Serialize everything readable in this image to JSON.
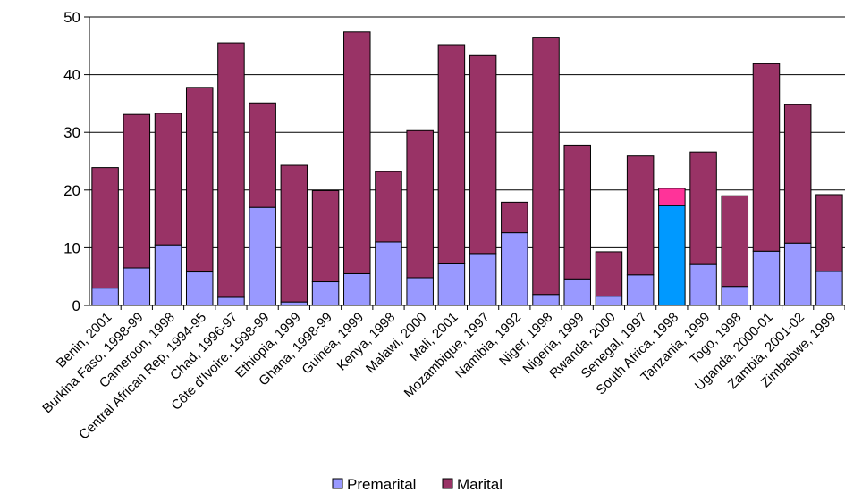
{
  "chart_data": {
    "type": "bar",
    "stacked": true,
    "categories": [
      "Benin, 2001",
      "Burkina Faso, 1998-99",
      "Cameroon, 1998",
      "Central African Rep, 1994-95",
      "Chad, 1996-97",
      "Côte d'Ivoire, 1998-99",
      "Ethiopia, 1999",
      "Ghana, 1998-99",
      "Guinea, 1999",
      "Kenya, 1998",
      "Malawi, 2000",
      "Mali, 2001",
      "Mozambique, 1997",
      "Namibia, 1992",
      "Niger, 1998",
      "Nigeria, 1999",
      "Rwanda, 2000",
      "Senegal, 1997",
      "South Africa, 1998",
      "Tanzania, 1999",
      "Togo, 1998",
      "Uganda, 2000-01",
      "Zambia, 2001-02",
      "Zimbabwe, 1999"
    ],
    "series": [
      {
        "name": "Premarital",
        "color": "#9999ff",
        "values": [
          3,
          6.5,
          10.5,
          5.8,
          1.4,
          17,
          0.6,
          4.1,
          5.5,
          11,
          4.8,
          7.2,
          9,
          12.6,
          1.9,
          4.6,
          1.6,
          5.3,
          17.3,
          7.1,
          3.3,
          9.4,
          10.8,
          5.9
        ]
      },
      {
        "name": "Marital",
        "color": "#993366",
        "values": [
          20.9,
          26.6,
          22.8,
          32,
          44.1,
          18.1,
          23.7,
          15.8,
          41.9,
          12.2,
          25.5,
          38,
          34.3,
          5.3,
          44.6,
          23.2,
          7.7,
          20.6,
          3,
          19.5,
          15.7,
          32.5,
          24,
          13.3
        ]
      }
    ],
    "highlight": {
      "category": "South Africa, 1998",
      "colors": [
        "#0099ff",
        "#ff3399"
      ]
    },
    "ylim": [
      0,
      50
    ],
    "yticks": [
      0,
      10,
      20,
      30,
      40,
      50
    ],
    "grid": true,
    "legend": "bottom",
    "title": "",
    "xlabel": "",
    "ylabel": ""
  }
}
